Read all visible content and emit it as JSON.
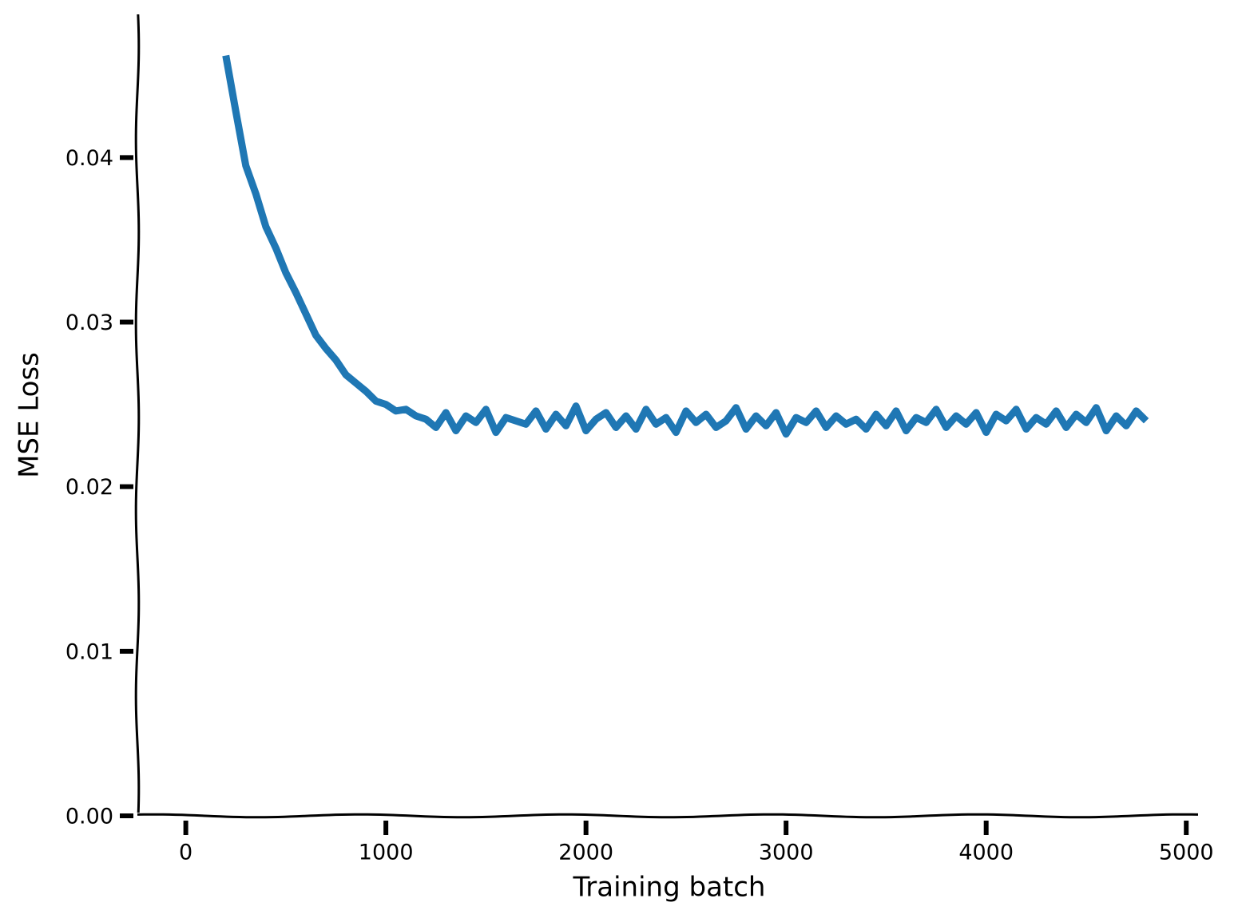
{
  "chart_data": {
    "type": "line",
    "xlabel": "Training batch",
    "ylabel": "MSE Loss",
    "x": [
      200,
      250,
      300,
      350,
      400,
      450,
      500,
      550,
      600,
      650,
      700,
      750,
      800,
      850,
      900,
      950,
      1000,
      1050,
      1100,
      1150,
      1200,
      1250,
      1300,
      1350,
      1400,
      1450,
      1500,
      1550,
      1600,
      1650,
      1700,
      1750,
      1800,
      1850,
      1900,
      1950,
      2000,
      2050,
      2100,
      2150,
      2200,
      2250,
      2300,
      2350,
      2400,
      2450,
      2500,
      2550,
      2600,
      2650,
      2700,
      2750,
      2800,
      2850,
      2900,
      2950,
      3000,
      3050,
      3100,
      3150,
      3200,
      3250,
      3300,
      3350,
      3400,
      3450,
      3500,
      3550,
      3600,
      3650,
      3700,
      3750,
      3800,
      3850,
      3900,
      3950,
      4000,
      4050,
      4100,
      4150,
      4200,
      4250,
      4300,
      4350,
      4400,
      4450,
      4500,
      4550,
      4600,
      4650,
      4700,
      4750,
      4800
    ],
    "series": [
      {
        "name": "loss",
        "color": "#1f77b4",
        "values": [
          0.0462,
          0.0428,
          0.0395,
          0.0378,
          0.0358,
          0.0345,
          0.033,
          0.0318,
          0.0305,
          0.0292,
          0.0284,
          0.0277,
          0.0268,
          0.0263,
          0.0258,
          0.0252,
          0.025,
          0.0246,
          0.0247,
          0.0243,
          0.0241,
          0.0236,
          0.0245,
          0.0234,
          0.0243,
          0.0239,
          0.0247,
          0.0233,
          0.0242,
          0.024,
          0.0238,
          0.0246,
          0.0235,
          0.0244,
          0.0237,
          0.0249,
          0.0234,
          0.0241,
          0.0245,
          0.0236,
          0.0243,
          0.0235,
          0.0247,
          0.0238,
          0.0242,
          0.0233,
          0.0246,
          0.0239,
          0.0244,
          0.0236,
          0.024,
          0.0248,
          0.0235,
          0.0243,
          0.0237,
          0.0245,
          0.0232,
          0.0242,
          0.0239,
          0.0246,
          0.0236,
          0.0243,
          0.0238,
          0.0241,
          0.0235,
          0.0244,
          0.0237,
          0.0246,
          0.0234,
          0.0242,
          0.0239,
          0.0247,
          0.0236,
          0.0243,
          0.0238,
          0.0245,
          0.0233,
          0.0244,
          0.024,
          0.0247,
          0.0235,
          0.0242,
          0.0238,
          0.0246,
          0.0236,
          0.0244,
          0.0239,
          0.0248,
          0.0234,
          0.0243,
          0.0237,
          0.0246,
          0.024
        ]
      }
    ],
    "xlim": [
      -242,
      5071
    ],
    "ylim": [
      0,
      0.0487
    ],
    "xticks": [
      0,
      1000,
      2000,
      3000,
      4000,
      5000
    ],
    "yticks": [
      {
        "value": 0,
        "label": "0.00"
      },
      0.01,
      0.02,
      0.03,
      0.04
    ]
  }
}
